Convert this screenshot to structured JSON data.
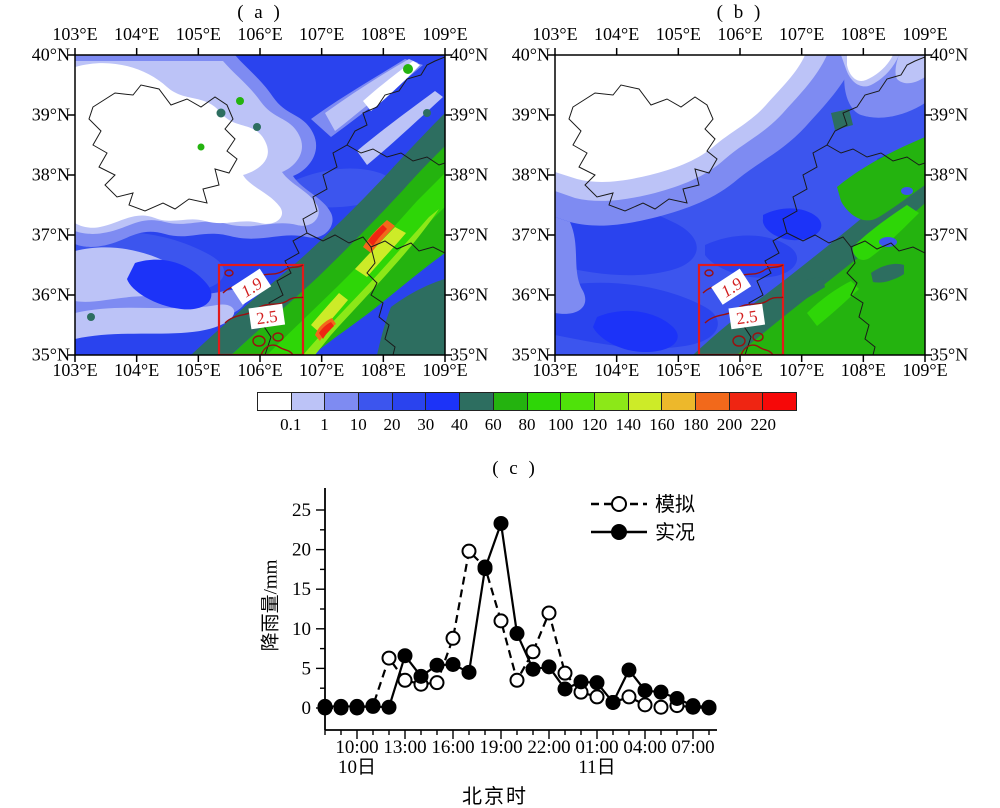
{
  "figure_titles": {
    "a": "( a )",
    "b": "( b )",
    "c": "( c )"
  },
  "maps": {
    "lon_labels": [
      "103°E",
      "104°E",
      "105°E",
      "106°E",
      "107°E",
      "108°E",
      "109°E"
    ],
    "lat_labels": [
      "40°N",
      "39°N",
      "38°N",
      "37°N",
      "36°N",
      "35°N"
    ],
    "lon_range": [
      103,
      109
    ],
    "lat_range": [
      35,
      40
    ],
    "box_labels": {
      "upper": "1.9",
      "lower": "2.5"
    },
    "box_color": "#e31a1a"
  },
  "colorbar": {
    "colors": [
      "#ffffff",
      "#bcc3f7",
      "#7e8bf2",
      "#3c55ee",
      "#2a43ee",
      "#1c33f8",
      "#2d6e60",
      "#24b30f",
      "#2ed607",
      "#4fe20a",
      "#8ce818",
      "#cdeb28",
      "#edb82b",
      "#f2691b",
      "#ef2512",
      "#f60808"
    ],
    "tick_labels": [
      "0.1",
      "1",
      "10",
      "20",
      "30",
      "40",
      "60",
      "80",
      "100",
      "120",
      "140",
      "160",
      "180",
      "200",
      "220"
    ]
  },
  "chart_data": {
    "type": "line",
    "title": "( c )",
    "ylabel": "降雨量/mm",
    "xlabel": "北京时",
    "ylim": [
      0,
      25
    ],
    "y_ticks": [
      0,
      5,
      10,
      15,
      20,
      25
    ],
    "x_major_labels": [
      "10:00",
      "13:00",
      "16:00",
      "19:00",
      "22:00",
      "01:00",
      "04:00",
      "07:00"
    ],
    "day_labels": [
      {
        "label": "10日",
        "tick_index": 0
      },
      {
        "label": "11日",
        "tick_index": 5
      }
    ],
    "hours": [
      "08:00",
      "09:00",
      "10:00",
      "11:00",
      "12:00",
      "13:00",
      "14:00",
      "15:00",
      "16:00",
      "17:00",
      "18:00",
      "19:00",
      "20:00",
      "21:00",
      "22:00",
      "23:00",
      "00:00",
      "01:00",
      "02:00",
      "03:00",
      "04:00",
      "05:00",
      "06:00",
      "07:00",
      "08:00"
    ],
    "series": [
      {
        "name": "模拟",
        "style": "dashed-open",
        "values": [
          0,
          0,
          0,
          0.3,
          6.3,
          3.5,
          3.0,
          3.2,
          8.8,
          19.8,
          17.8,
          11.0,
          3.5,
          7.1,
          12.0,
          4.4,
          2.0,
          1.4,
          0.7,
          1.4,
          0.4,
          0.1,
          0.3,
          0.1,
          0
        ]
      },
      {
        "name": "实况",
        "style": "solid-filled",
        "values": [
          0.2,
          0.2,
          0.2,
          0.2,
          0.1,
          6.6,
          4.0,
          5.4,
          5.5,
          4.5,
          17.6,
          23.3,
          9.4,
          4.9,
          5.2,
          2.4,
          3.3,
          3.2,
          0.7,
          4.8,
          2.2,
          2.0,
          1.2,
          0.3,
          0.1
        ]
      }
    ],
    "legend_position": "top-right"
  }
}
